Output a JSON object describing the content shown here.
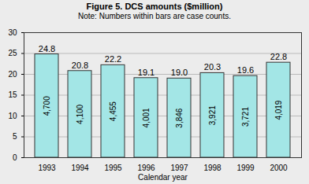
{
  "chart_data": {
    "type": "bar",
    "title": "Figure 5. DCS amounts ($million)",
    "subtitle": "Note: Numbers within bars are case counts.",
    "x_label": "Calendar year",
    "categories": [
      "1993",
      "1994",
      "1995",
      "1996",
      "1997",
      "1998",
      "1999",
      "2000"
    ],
    "values": [
      24.8,
      20.8,
      22.2,
      19.1,
      19.0,
      20.3,
      19.6,
      22.8
    ],
    "value_labels": [
      "24.8",
      "20.8",
      "22.2",
      "19.1",
      "19.0",
      "20.3",
      "19.6",
      "22.8"
    ],
    "case_counts": [
      4700,
      4100,
      4455,
      4001,
      3846,
      3921,
      3721,
      4019
    ],
    "case_count_labels": [
      "4,700",
      "4,100",
      "4,455",
      "4,001",
      "3,846",
      "3,921",
      "3,721",
      "4,019"
    ],
    "color": "#a3e6e6",
    "ylim": [
      0,
      30
    ],
    "yticks": [
      0,
      5,
      10,
      15,
      20,
      25,
      30
    ],
    "grid": true,
    "data_labels": true
  }
}
